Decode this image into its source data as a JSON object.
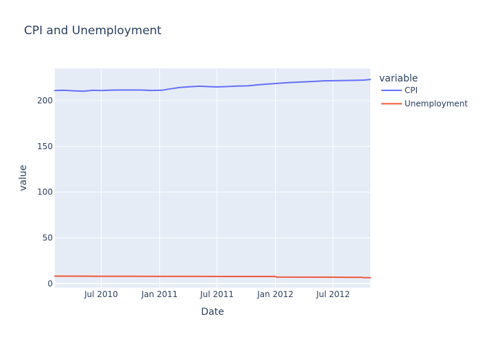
{
  "chart_data": {
    "type": "line",
    "title": "CPI and Unemployment",
    "xlabel": "Date",
    "ylabel": "value",
    "xlim": [
      "2010-02-05",
      "2012-10-26"
    ],
    "ylim": [
      -4.3,
      235.2
    ],
    "x_ticks": [
      {
        "date": "2010-07-01",
        "label": "Jul 2010"
      },
      {
        "date": "2011-01-01",
        "label": "Jan 2011"
      },
      {
        "date": "2011-07-01",
        "label": "Jul 2011"
      },
      {
        "date": "2012-01-01",
        "label": "Jan 2012"
      },
      {
        "date": "2012-07-01",
        "label": "Jul 2012"
      }
    ],
    "y_ticks": [
      0,
      50,
      100,
      150,
      200
    ],
    "grid": true,
    "legend": {
      "title": "variable",
      "placement": "right"
    },
    "series": [
      {
        "name": "CPI",
        "color": "#636efa",
        "points": [
          {
            "x": "2010-02-05",
            "y": 211.1
          },
          {
            "x": "2010-03-05",
            "y": 211.3
          },
          {
            "x": "2010-04-02",
            "y": 210.8
          },
          {
            "x": "2010-05-07",
            "y": 210.3
          },
          {
            "x": "2010-06-04",
            "y": 211.3
          },
          {
            "x": "2010-07-02",
            "y": 211.1
          },
          {
            "x": "2010-08-06",
            "y": 211.5
          },
          {
            "x": "2010-09-03",
            "y": 211.6
          },
          {
            "x": "2010-10-01",
            "y": 211.6
          },
          {
            "x": "2010-11-05",
            "y": 211.6
          },
          {
            "x": "2010-12-03",
            "y": 211.2
          },
          {
            "x": "2011-01-07",
            "y": 211.3
          },
          {
            "x": "2011-02-04",
            "y": 212.9
          },
          {
            "x": "2011-03-04",
            "y": 214.3
          },
          {
            "x": "2011-04-01",
            "y": 215.1
          },
          {
            "x": "2011-05-06",
            "y": 215.8
          },
          {
            "x": "2011-06-03",
            "y": 215.4
          },
          {
            "x": "2011-07-01",
            "y": 215.0
          },
          {
            "x": "2011-08-05",
            "y": 215.5
          },
          {
            "x": "2011-09-02",
            "y": 215.9
          },
          {
            "x": "2011-10-07",
            "y": 216.2
          },
          {
            "x": "2011-11-04",
            "y": 217.2
          },
          {
            "x": "2011-12-02",
            "y": 218.0
          },
          {
            "x": "2012-01-06",
            "y": 218.8
          },
          {
            "x": "2012-02-03",
            "y": 219.6
          },
          {
            "x": "2012-03-02",
            "y": 220.0
          },
          {
            "x": "2012-04-06",
            "y": 220.6
          },
          {
            "x": "2012-05-04",
            "y": 221.1
          },
          {
            "x": "2012-06-01",
            "y": 221.6
          },
          {
            "x": "2012-07-06",
            "y": 221.8
          },
          {
            "x": "2012-08-03",
            "y": 222.0
          },
          {
            "x": "2012-09-07",
            "y": 222.2
          },
          {
            "x": "2012-10-05",
            "y": 222.5
          },
          {
            "x": "2012-10-26",
            "y": 223.1
          }
        ]
      },
      {
        "name": "Unemployment",
        "color": "#ef553b",
        "points": [
          {
            "x": "2010-02-05",
            "y": 8.1
          },
          {
            "x": "2010-06-04",
            "y": 8.0
          },
          {
            "x": "2010-10-01",
            "y": 8.0
          },
          {
            "x": "2011-01-07",
            "y": 7.9
          },
          {
            "x": "2011-04-01",
            "y": 7.9
          },
          {
            "x": "2011-07-01",
            "y": 7.8
          },
          {
            "x": "2011-10-07",
            "y": 7.8
          },
          {
            "x": "2011-12-30",
            "y": 7.8
          },
          {
            "x": "2012-01-06",
            "y": 7.1
          },
          {
            "x": "2012-04-06",
            "y": 7.0
          },
          {
            "x": "2012-07-06",
            "y": 6.9
          },
          {
            "x": "2012-09-28",
            "y": 6.8
          },
          {
            "x": "2012-10-05",
            "y": 6.5
          },
          {
            "x": "2012-10-26",
            "y": 6.5
          }
        ]
      }
    ]
  }
}
